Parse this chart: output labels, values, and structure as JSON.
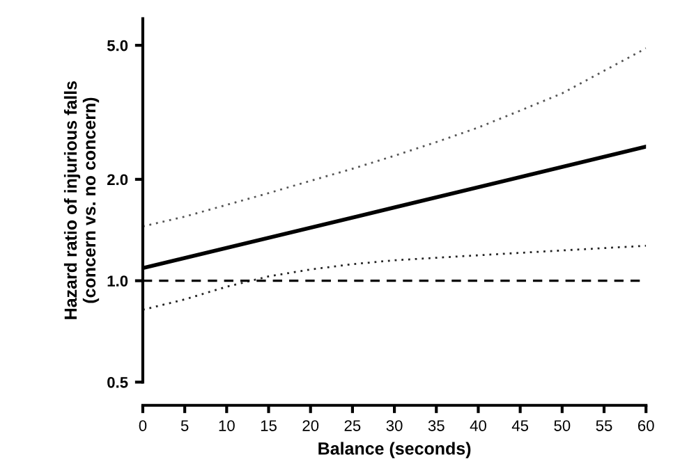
{
  "chart_data": {
    "type": "line",
    "xlabel": "Balance (seconds)",
    "ylabel": "Hazard ratio of injurious falls\n(concern vs. no concern)",
    "log": "y",
    "xlim": [
      0,
      60
    ],
    "xticks": [
      0,
      5,
      10,
      15,
      20,
      25,
      30,
      35,
      40,
      45,
      50,
      55,
      60
    ],
    "ylim": [
      0.5,
      6.0
    ],
    "yticks": [
      {
        "value": 0.5,
        "label": "0.5"
      },
      {
        "value": 1.0,
        "label": "1.0"
      },
      {
        "value": 2.0,
        "label": "2.0"
      },
      {
        "value": 5.0,
        "label": "5.0"
      }
    ],
    "grid": false,
    "legend": false,
    "marker": "none",
    "series": [
      {
        "color": "#000000",
        "line_style": "solid",
        "x": [
          0,
          30,
          60
        ],
        "values": [
          1.09,
          1.65,
          2.5
        ]
      },
      {
        "color": "#555555",
        "line_style": "dotted",
        "x": [
          0,
          5,
          10,
          15,
          20,
          25,
          30,
          35,
          40,
          45,
          50,
          55,
          60
        ],
        "values": [
          1.45,
          1.55,
          1.68,
          1.82,
          1.98,
          2.15,
          2.35,
          2.58,
          2.85,
          3.2,
          3.6,
          4.2,
          4.9
        ]
      },
      {
        "color": "#222222",
        "line_style": "dotted",
        "x": [
          0,
          5,
          10,
          15,
          20,
          25,
          30,
          35,
          40,
          45,
          50,
          55,
          60
        ],
        "values": [
          0.82,
          0.88,
          0.96,
          1.03,
          1.08,
          1.12,
          1.15,
          1.17,
          1.19,
          1.21,
          1.23,
          1.25,
          1.27
        ]
      }
    ],
    "ref_lines": [
      {
        "axis": "y",
        "value": 1.0,
        "color": "#000000",
        "line_style": "dashed"
      }
    ]
  }
}
